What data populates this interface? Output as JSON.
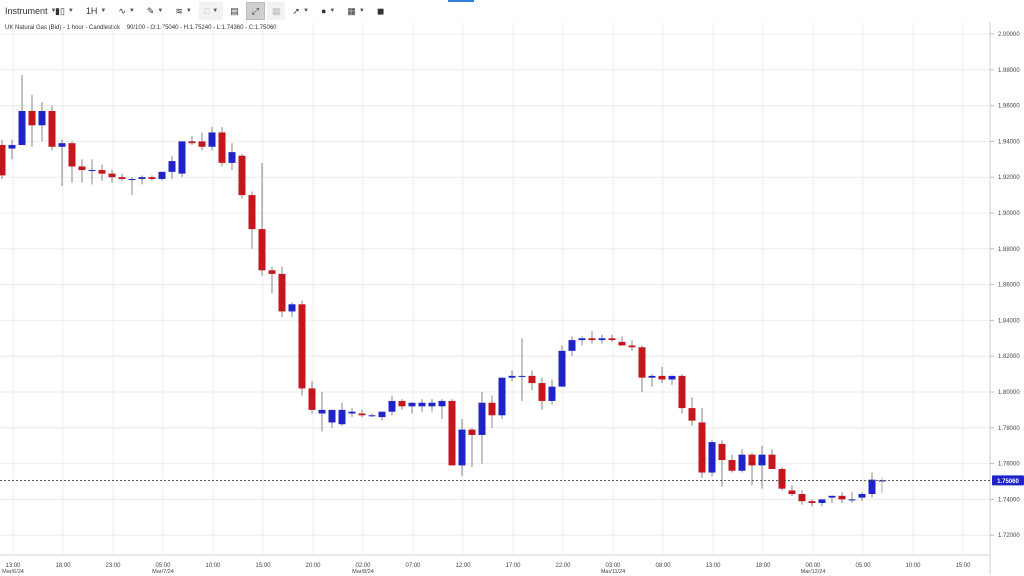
{
  "toolbar": {
    "instrument_label": "Instrument",
    "timeframe_label": "1H",
    "icons": [
      "candlestick-type-icon",
      "line-tool-icon",
      "pencil-icon",
      "indicators-icon",
      "square-icon",
      "layout-icon",
      "crosshair-icon",
      "disabled-tool-icon",
      "arrow-icon",
      "settings-icon",
      "flag-icon",
      "fullscreen-icon"
    ]
  },
  "header": {
    "instrument_name": "UK Natural Gas (Bid) - 1 hour - Candlestick",
    "ohlc": "90/100 - O:1.75040 - H:1.75240 - L:1.74360 - C:1.75060"
  },
  "colors": {
    "bull": "#1f23c8",
    "bear": "#c4161c",
    "grid": "#ececec",
    "price_badge": "#1f23c8"
  },
  "chart_data": {
    "type": "candlestick",
    "ylim": [
      1.71,
      2.0
    ],
    "y_ticks": [
      "2.00000",
      "1.98000",
      "1.96000",
      "1.94000",
      "1.92000",
      "1.90000",
      "1.88000",
      "1.86000",
      "1.84000",
      "1.82000",
      "1.80000",
      "1.78000",
      "1.76000",
      "1.74000",
      "1.72000"
    ],
    "x_ticks": [
      {
        "label": "13:00",
        "date": "Mar/6/24"
      },
      {
        "label": "18:00",
        "date": ""
      },
      {
        "label": "23:00",
        "date": ""
      },
      {
        "label": "05:00",
        "date": "Mar/7/24"
      },
      {
        "label": "10:00",
        "date": ""
      },
      {
        "label": "15:00",
        "date": ""
      },
      {
        "label": "20:00",
        "date": ""
      },
      {
        "label": "02:00",
        "date": "Mar/8/24"
      },
      {
        "label": "07:00",
        "date": ""
      },
      {
        "label": "12:00",
        "date": ""
      },
      {
        "label": "17:00",
        "date": ""
      },
      {
        "label": "22:00",
        "date": ""
      },
      {
        "label": "03:00",
        "date": "Mar/11/24"
      },
      {
        "label": "08:00",
        "date": ""
      },
      {
        "label": "13:00",
        "date": ""
      },
      {
        "label": "18:00",
        "date": ""
      },
      {
        "label": "00:00",
        "date": "Mar/12/24"
      },
      {
        "label": "05:00",
        "date": ""
      },
      {
        "label": "10:00",
        "date": ""
      },
      {
        "label": "15:00",
        "date": ""
      }
    ],
    "current_price": 1.7506,
    "current_price_label": "1.75060",
    "candles": [
      [
        1.938,
        1.941,
        1.919,
        1.921
      ],
      [
        1.936,
        1.941,
        1.93,
        1.938
      ],
      [
        1.938,
        1.977,
        1.94,
        1.957
      ],
      [
        1.957,
        1.966,
        1.937,
        1.949
      ],
      [
        1.949,
        1.962,
        1.94,
        1.957
      ],
      [
        1.957,
        1.96,
        1.935,
        1.937
      ],
      [
        1.937,
        1.941,
        1.915,
        1.939
      ],
      [
        1.939,
        1.94,
        1.917,
        1.926
      ],
      [
        1.926,
        1.93,
        1.917,
        1.924
      ],
      [
        1.924,
        1.93,
        1.916,
        1.924
      ],
      [
        1.924,
        1.927,
        1.918,
        1.922
      ],
      [
        1.922,
        1.924,
        1.917,
        1.92
      ],
      [
        1.92,
        1.922,
        1.918,
        1.919
      ],
      [
        1.919,
        1.92,
        1.91,
        1.919
      ],
      [
        1.919,
        1.921,
        1.916,
        1.92
      ],
      [
        1.92,
        1.921,
        1.918,
        1.919
      ],
      [
        1.919,
        1.922,
        1.918,
        1.923
      ],
      [
        1.923,
        1.932,
        1.919,
        1.929
      ],
      [
        1.922,
        1.94,
        1.92,
        1.94
      ],
      [
        1.94,
        1.943,
        1.938,
        1.939
      ],
      [
        1.94,
        1.945,
        1.935,
        1.937
      ],
      [
        1.937,
        1.948,
        1.935,
        1.945
      ],
      [
        1.945,
        1.948,
        1.926,
        1.928
      ],
      [
        1.928,
        1.939,
        1.924,
        1.934
      ],
      [
        1.932,
        1.933,
        1.908,
        1.91
      ],
      [
        1.91,
        1.912,
        1.88,
        1.891
      ],
      [
        1.891,
        1.928,
        1.865,
        1.868
      ],
      [
        1.868,
        1.87,
        1.855,
        1.866
      ],
      [
        1.866,
        1.87,
        1.842,
        1.845
      ],
      [
        1.845,
        1.85,
        1.842,
        1.849
      ],
      [
        1.849,
        1.851,
        1.798,
        1.802
      ],
      [
        1.802,
        1.806,
        1.788,
        1.79
      ],
      [
        1.788,
        1.8,
        1.778,
        1.79
      ],
      [
        1.783,
        1.79,
        1.78,
        1.79
      ],
      [
        1.782,
        1.794,
        1.781,
        1.79
      ],
      [
        1.788,
        1.791,
        1.786,
        1.789
      ],
      [
        1.788,
        1.79,
        1.786,
        1.787
      ],
      [
        1.787,
        1.788,
        1.786,
        1.787
      ],
      [
        1.786,
        1.789,
        1.784,
        1.789
      ],
      [
        1.789,
        1.798,
        1.787,
        1.795
      ],
      [
        1.795,
        1.796,
        1.79,
        1.792
      ],
      [
        1.792,
        1.794,
        1.788,
        1.794
      ],
      [
        1.792,
        1.796,
        1.789,
        1.794
      ],
      [
        1.792,
        1.796,
        1.789,
        1.794
      ],
      [
        1.792,
        1.796,
        1.785,
        1.795
      ],
      [
        1.795,
        1.796,
        1.76,
        1.759
      ],
      [
        1.759,
        1.785,
        1.753,
        1.779
      ],
      [
        1.779,
        1.78,
        1.758,
        1.776
      ],
      [
        1.776,
        1.8,
        1.76,
        1.794
      ],
      [
        1.794,
        1.798,
        1.78,
        1.787
      ],
      [
        1.787,
        1.808,
        1.785,
        1.808
      ],
      [
        1.808,
        1.812,
        1.806,
        1.809
      ],
      [
        1.809,
        1.83,
        1.795,
        1.809
      ],
      [
        1.809,
        1.812,
        1.801,
        1.805
      ],
      [
        1.805,
        1.808,
        1.79,
        1.795
      ],
      [
        1.795,
        1.807,
        1.793,
        1.803
      ],
      [
        1.803,
        1.826,
        1.803,
        1.823
      ],
      [
        1.823,
        1.831,
        1.82,
        1.829
      ],
      [
        1.829,
        1.831,
        1.826,
        1.83
      ],
      [
        1.83,
        1.834,
        1.827,
        1.829
      ],
      [
        1.829,
        1.832,
        1.827,
        1.83
      ],
      [
        1.83,
        1.832,
        1.828,
        1.829
      ],
      [
        1.828,
        1.831,
        1.826,
        1.826
      ],
      [
        1.826,
        1.829,
        1.823,
        1.825
      ],
      [
        1.825,
        1.826,
        1.8,
        1.808
      ],
      [
        1.808,
        1.81,
        1.803,
        1.809
      ],
      [
        1.809,
        1.814,
        1.805,
        1.807
      ],
      [
        1.807,
        1.809,
        1.804,
        1.809
      ],
      [
        1.809,
        1.81,
        1.788,
        1.791
      ],
      [
        1.791,
        1.797,
        1.781,
        1.784
      ],
      [
        1.783,
        1.791,
        1.752,
        1.755
      ],
      [
        1.755,
        1.773,
        1.753,
        1.772
      ],
      [
        1.771,
        1.773,
        1.747,
        1.762
      ],
      [
        1.762,
        1.765,
        1.755,
        1.756
      ],
      [
        1.756,
        1.768,
        1.755,
        1.765
      ],
      [
        1.765,
        1.766,
        1.748,
        1.759
      ],
      [
        1.759,
        1.77,
        1.746,
        1.765
      ],
      [
        1.765,
        1.768,
        1.757,
        1.757
      ],
      [
        1.757,
        1.758,
        1.745,
        1.746
      ],
      [
        1.745,
        1.748,
        1.742,
        1.743
      ],
      [
        1.743,
        1.745,
        1.737,
        1.739
      ],
      [
        1.739,
        1.74,
        1.736,
        1.738
      ],
      [
        1.738,
        1.74,
        1.736,
        1.74
      ],
      [
        1.741,
        1.742,
        1.738,
        1.742
      ],
      [
        1.742,
        1.744,
        1.738,
        1.74
      ],
      [
        1.74,
        1.744,
        1.738,
        1.74
      ],
      [
        1.741,
        1.744,
        1.739,
        1.743
      ],
      [
        1.743,
        1.755,
        1.741,
        1.751
      ],
      [
        1.7504,
        1.7524,
        1.7436,
        1.7506
      ]
    ]
  }
}
